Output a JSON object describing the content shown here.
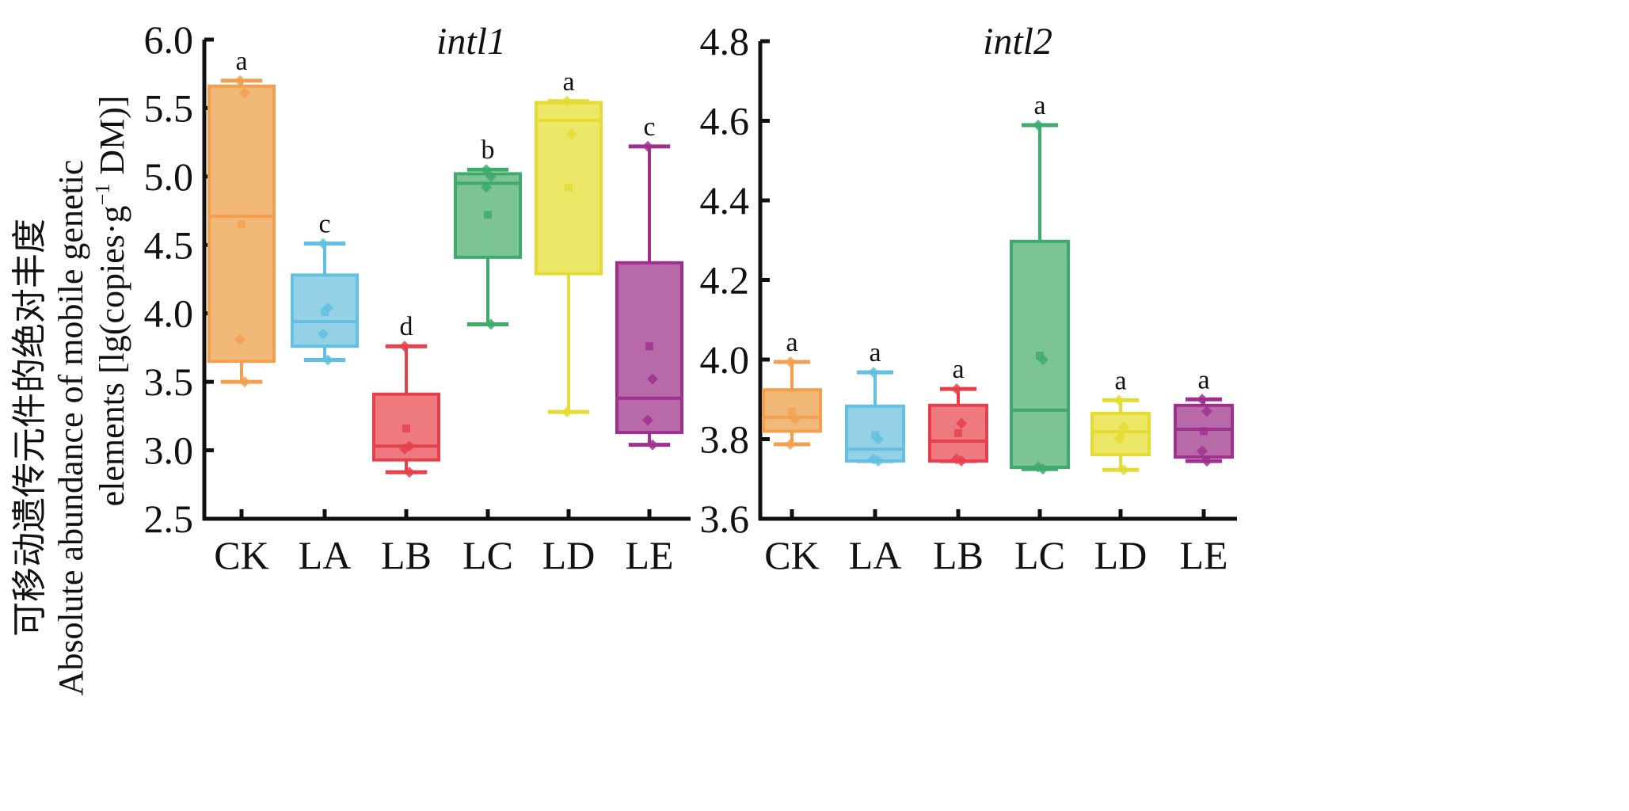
{
  "ylabel": {
    "line1": "可移动遗传元件的绝对丰度",
    "line2": "Absolute abundance of mobile genetic",
    "line3_pre": "elements [lg(copies·g",
    "line3_sup": "−1",
    "line3_post": " DM)]"
  },
  "colors": {
    "CK": {
      "line": "#f2a050",
      "fill": "#f2b877"
    },
    "LA": {
      "line": "#62c0e2",
      "fill": "#94d0e6"
    },
    "LB": {
      "line": "#e6404c",
      "fill": "#ee7a80"
    },
    "LC": {
      "line": "#3eaa6c",
      "fill": "#7cc494"
    },
    "LD": {
      "line": "#e4dc34",
      "fill": "#ece766"
    },
    "LE": {
      "line": "#a0308e",
      "fill": "#b86aa8"
    }
  },
  "chart_data": [
    {
      "type": "box",
      "title": "intl1",
      "ylim": [
        2.5,
        6.0
      ],
      "yticks": [
        "2.5",
        "3.0",
        "3.5",
        "4.0",
        "4.5",
        "5.0",
        "5.5",
        "6.0"
      ],
      "categories": [
        "CK",
        "LA",
        "LB",
        "LC",
        "LD",
        "LE"
      ],
      "boxes": [
        {
          "cat": "CK",
          "q1": 3.65,
          "median": 4.71,
          "q3": 5.66,
          "min": 3.5,
          "max": 5.7,
          "mean": 4.65,
          "points": [
            5.7,
            5.61,
            3.81,
            3.5
          ],
          "letter": "a"
        },
        {
          "cat": "LA",
          "q1": 3.76,
          "median": 3.94,
          "q3": 4.28,
          "min": 3.66,
          "max": 4.51,
          "mean": 4.01,
          "points": [
            4.51,
            4.04,
            3.85,
            3.66
          ],
          "letter": "c"
        },
        {
          "cat": "LB",
          "q1": 2.93,
          "median": 3.03,
          "q3": 3.41,
          "min": 2.84,
          "max": 3.76,
          "mean": 3.16,
          "points": [
            3.76,
            3.03,
            3.01,
            2.84
          ],
          "letter": "d"
        },
        {
          "cat": "LC",
          "q1": 4.41,
          "median": 4.95,
          "q3": 5.02,
          "min": 3.92,
          "max": 5.05,
          "mean": 4.72,
          "points": [
            5.05,
            5.0,
            4.92,
            3.92
          ],
          "letter": "b"
        },
        {
          "cat": "LD",
          "q1": 4.29,
          "median": 5.41,
          "q3": 5.54,
          "min": 3.28,
          "max": 5.55,
          "mean": 4.92,
          "points": [
            5.55,
            5.31,
            3.28
          ],
          "letter": "a"
        },
        {
          "cat": "LE",
          "q1": 3.13,
          "median": 3.38,
          "q3": 4.37,
          "min": 3.04,
          "max": 5.22,
          "mean": 3.76,
          "points": [
            5.22,
            3.52,
            3.22,
            3.04
          ],
          "letter": "c"
        }
      ]
    },
    {
      "type": "box",
      "title": "intl2",
      "ylim": [
        3.6,
        4.8
      ],
      "yticks": [
        "3.6",
        "3.8",
        "4.0",
        "4.2",
        "4.4",
        "4.6",
        "4.8"
      ],
      "categories": [
        "CK",
        "LA",
        "LB",
        "LC",
        "LD",
        "LE"
      ],
      "boxes": [
        {
          "cat": "CK",
          "q1": 3.82,
          "median": 3.855,
          "q3": 3.924,
          "min": 3.787,
          "max": 3.994,
          "mean": 3.87,
          "points": [
            3.994,
            3.85,
            3.787
          ],
          "letter": "a"
        },
        {
          "cat": "LA",
          "q1": 3.745,
          "median": 3.775,
          "q3": 3.883,
          "min": 3.745,
          "max": 3.968,
          "mean": 3.81,
          "points": [
            3.968,
            3.8,
            3.75,
            3.745
          ],
          "letter": "a"
        },
        {
          "cat": "LB",
          "q1": 3.745,
          "median": 3.795,
          "q3": 3.885,
          "min": 3.745,
          "max": 3.926,
          "mean": 3.815,
          "points": [
            3.926,
            3.84,
            3.75,
            3.745
          ],
          "letter": "a"
        },
        {
          "cat": "LC",
          "q1": 3.729,
          "median": 3.873,
          "q3": 4.297,
          "min": 3.725,
          "max": 4.589,
          "mean": 4.01,
          "points": [
            4.589,
            4.0,
            3.73,
            3.725
          ],
          "letter": "a"
        },
        {
          "cat": "LD",
          "q1": 3.761,
          "median": 3.819,
          "q3": 3.865,
          "min": 3.723,
          "max": 3.898,
          "mean": 3.81,
          "points": [
            3.898,
            3.83,
            3.8,
            3.723
          ],
          "letter": "a"
        },
        {
          "cat": "LE",
          "q1": 3.755,
          "median": 3.825,
          "q3": 3.885,
          "min": 3.745,
          "max": 3.9,
          "mean": 3.82,
          "points": [
            3.9,
            3.87,
            3.77,
            3.745
          ],
          "letter": "a"
        }
      ]
    }
  ]
}
